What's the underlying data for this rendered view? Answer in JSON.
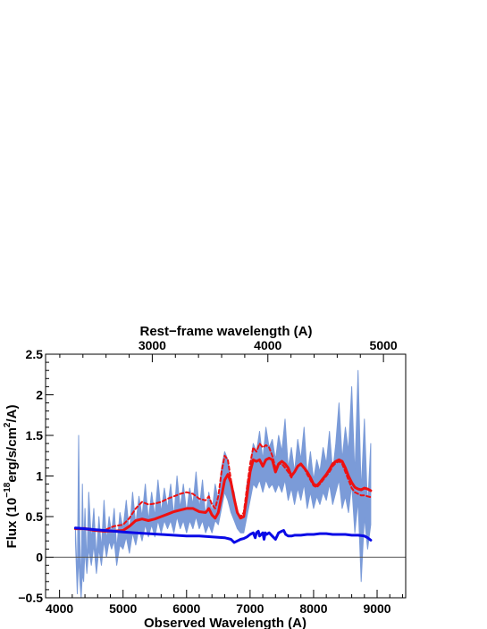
{
  "chart_data": {
    "type": "line",
    "title": "",
    "xlabel": "Observed Wavelength (A)",
    "ylabel_main": "Flux (10",
    "ylabel_exp": "−18",
    "ylabel_units": "erg/s/cm",
    "ylabel_exp2": "2",
    "ylabel_tail": "/A)",
    "top_xlabel": "Rest−frame wavelength (A)",
    "xlim": [
      3780,
      9450
    ],
    "ylim": [
      -0.5,
      2.5
    ],
    "x_ticks": [
      4000,
      5000,
      6000,
      7000,
      8000,
      9000
    ],
    "y_ticks": [
      -0.5,
      0,
      0.5,
      1,
      1.5,
      2,
      2.5
    ],
    "y_tick_labels": [
      "−0.5",
      "0",
      "0.5",
      "1",
      "1.5",
      "2",
      "2.5"
    ],
    "top_axis_ticks": [
      3000,
      4000,
      5000
    ],
    "redshift_factor": 1.82,
    "zero_line": 0,
    "series": [
      {
        "key": "observed_spectrum",
        "color": "#7b9bd8",
        "x": [
          4250,
          4280,
          4300,
          4320,
          4340,
          4360,
          4380,
          4400,
          4430,
          4460,
          4500,
          4540,
          4580,
          4620,
          4660,
          4700,
          4740,
          4780,
          4820,
          4860,
          4900,
          4950,
          5000,
          5050,
          5100,
          5150,
          5200,
          5250,
          5300,
          5350,
          5400,
          5450,
          5500,
          5550,
          5600,
          5650,
          5700,
          5750,
          5800,
          5850,
          5900,
          5950,
          6000,
          6050,
          6100,
          6150,
          6200,
          6250,
          6300,
          6350,
          6400,
          6450,
          6500,
          6550,
          6600,
          6650,
          6700,
          6750,
          6800,
          6850,
          6900,
          6950,
          7000,
          7050,
          7100,
          7150,
          7200,
          7250,
          7300,
          7350,
          7400,
          7450,
          7500,
          7550,
          7600,
          7650,
          7700,
          7750,
          7800,
          7850,
          7900,
          7950,
          8000,
          8050,
          8100,
          8150,
          8200,
          8250,
          8300,
          8350,
          8400,
          8450,
          8500,
          8550,
          8600,
          8650,
          8700,
          8750,
          8800,
          8850,
          8900
        ],
        "y": [
          0.35,
          -0.3,
          1.5,
          0.2,
          -0.4,
          0.9,
          0.1,
          0.6,
          -0.1,
          0.8,
          0.2,
          0.6,
          0.0,
          0.5,
          0.1,
          0.7,
          0.2,
          0.5,
          0.3,
          0.6,
          0.1,
          0.55,
          0.35,
          0.7,
          0.3,
          0.8,
          0.4,
          0.75,
          0.5,
          0.9,
          0.45,
          0.8,
          0.5,
          0.95,
          0.55,
          0.85,
          0.6,
          0.9,
          0.5,
          1.0,
          0.6,
          0.9,
          0.55,
          0.85,
          0.65,
          1.05,
          0.6,
          0.95,
          0.5,
          0.8,
          0.55,
          0.9,
          0.7,
          1.1,
          1.3,
          1.2,
          0.9,
          0.8,
          0.55,
          0.45,
          0.5,
          0.9,
          1.1,
          1.4,
          1.3,
          1.55,
          1.2,
          1.6,
          1.35,
          1.45,
          1.2,
          1.5,
          1.3,
          1.7,
          1.1,
          1.35,
          1.05,
          1.45,
          1.2,
          1.6,
          1.0,
          1.3,
          0.95,
          1.2,
          1.05,
          1.35,
          1.15,
          1.55,
          1.05,
          1.4,
          1.9,
          1.2,
          1.6,
          1.3,
          2.1,
          1.0,
          2.3,
          0.8,
          1.7,
          0.6,
          1.4
        ],
        "lower_y": [
          0.2,
          -0.45,
          0.0,
          -0.3,
          -0.5,
          -0.2,
          -0.3,
          0.1,
          -0.2,
          0.1,
          -0.1,
          0.15,
          -0.2,
          0.1,
          -0.1,
          0.2,
          0.0,
          0.2,
          0.1,
          0.2,
          -0.1,
          0.15,
          0.1,
          0.25,
          0.05,
          0.3,
          0.15,
          0.35,
          0.2,
          0.4,
          0.25,
          0.4,
          0.25,
          0.45,
          0.3,
          0.45,
          0.35,
          0.45,
          0.3,
          0.5,
          0.35,
          0.45,
          0.3,
          0.45,
          0.35,
          0.5,
          0.35,
          0.45,
          0.3,
          0.4,
          0.3,
          0.45,
          0.4,
          0.6,
          0.8,
          0.7,
          0.55,
          0.45,
          0.35,
          0.3,
          0.3,
          0.5,
          0.7,
          0.9,
          0.85,
          0.95,
          0.8,
          0.95,
          0.85,
          0.9,
          0.8,
          0.9,
          0.8,
          0.95,
          0.7,
          0.85,
          0.65,
          0.85,
          0.7,
          0.9,
          0.6,
          0.8,
          0.6,
          0.75,
          0.65,
          0.8,
          0.7,
          0.9,
          0.65,
          0.8,
          0.95,
          0.6,
          0.75,
          0.55,
          0.9,
          0.3,
          0.7,
          -0.3,
          0.5,
          0.1,
          0.4
        ],
        "width": 1
      },
      {
        "key": "model_solid",
        "color": "#ee1111",
        "dash": "none",
        "x": [
          4250,
          4400,
          4550,
          4700,
          4850,
          5000,
          5100,
          5200,
          5300,
          5400,
          5500,
          5600,
          5700,
          5800,
          5900,
          6000,
          6100,
          6200,
          6300,
          6350,
          6400,
          6450,
          6500,
          6550,
          6600,
          6650,
          6700,
          6750,
          6800,
          6850,
          6900,
          6950,
          7000,
          7050,
          7100,
          7150,
          7200,
          7250,
          7300,
          7350,
          7400,
          7450,
          7500,
          7550,
          7600,
          7650,
          7700,
          7750,
          7800,
          7850,
          7900,
          7950,
          8000,
          8050,
          8100,
          8150,
          8200,
          8250,
          8300,
          8350,
          8400,
          8450,
          8500,
          8550,
          8600,
          8650,
          8700,
          8750,
          8800,
          8850,
          8900
        ],
        "y": [
          0.35,
          0.35,
          0.33,
          0.32,
          0.32,
          0.33,
          0.38,
          0.45,
          0.47,
          0.45,
          0.47,
          0.5,
          0.53,
          0.56,
          0.58,
          0.6,
          0.6,
          0.56,
          0.55,
          0.6,
          0.52,
          0.48,
          0.55,
          0.75,
          0.95,
          1.02,
          0.92,
          0.72,
          0.55,
          0.48,
          0.5,
          0.75,
          1.05,
          1.2,
          1.18,
          1.2,
          1.12,
          1.2,
          1.22,
          1.2,
          1.05,
          1.15,
          1.18,
          1.15,
          1.1,
          1.0,
          1.05,
          1.12,
          1.15,
          1.1,
          1.05,
          0.98,
          0.9,
          0.88,
          0.92,
          0.97,
          1.02,
          1.08,
          1.15,
          1.18,
          1.2,
          1.18,
          1.1,
          1.0,
          0.92,
          0.86,
          0.84,
          0.83,
          0.85,
          0.84,
          0.82
        ],
        "width": 3
      },
      {
        "key": "model_dotted",
        "color": "#ee1111",
        "dash": "4,3",
        "x": [
          4250,
          4400,
          4550,
          4700,
          4850,
          5000,
          5100,
          5200,
          5300,
          5400,
          5500,
          5600,
          5700,
          5800,
          5900,
          6000,
          6100,
          6200,
          6300,
          6350,
          6400,
          6450,
          6500,
          6550,
          6600,
          6650,
          6700,
          6750,
          6800,
          6850,
          6900,
          6950,
          7000,
          7050,
          7100,
          7150,
          7200,
          7250,
          7300,
          7350,
          7400,
          7450,
          7500,
          7550,
          7600,
          7650,
          7700,
          7750,
          7800,
          7850,
          7900,
          7950,
          8000,
          8050,
          8100,
          8150,
          8200,
          8250,
          8300,
          8350,
          8400,
          8450,
          8500,
          8550,
          8600,
          8650,
          8700,
          8750,
          8800,
          8850,
          8900
        ],
        "y": [
          0.35,
          0.36,
          0.34,
          0.33,
          0.38,
          0.4,
          0.48,
          0.6,
          0.68,
          0.65,
          0.66,
          0.68,
          0.72,
          0.75,
          0.78,
          0.8,
          0.78,
          0.72,
          0.7,
          0.75,
          0.65,
          0.6,
          0.75,
          1.05,
          1.25,
          1.2,
          0.95,
          0.72,
          0.55,
          0.5,
          0.55,
          0.85,
          1.15,
          1.35,
          1.3,
          1.4,
          1.35,
          1.38,
          1.35,
          1.25,
          1.1,
          1.15,
          1.15,
          1.1,
          1.05,
          0.98,
          1.05,
          1.12,
          1.15,
          1.1,
          1.02,
          0.95,
          0.88,
          0.86,
          0.9,
          0.95,
          1.0,
          1.05,
          1.12,
          1.16,
          1.18,
          1.15,
          1.05,
          0.95,
          0.85,
          0.8,
          0.78,
          0.76,
          0.76,
          0.75,
          0.74
        ],
        "width": 2
      },
      {
        "key": "error_spectrum",
        "color": "#0a0ae6",
        "dash": "none",
        "x": [
          4250,
          4400,
          4550,
          4700,
          4850,
          5000,
          5200,
          5400,
          5600,
          5800,
          6000,
          6200,
          6400,
          6600,
          6700,
          6750,
          6800,
          6850,
          6900,
          6950,
          7000,
          7050,
          7080,
          7100,
          7130,
          7150,
          7200,
          7220,
          7240,
          7260,
          7300,
          7350,
          7400,
          7450,
          7500,
          7530,
          7560,
          7600,
          7650,
          7700,
          7800,
          7900,
          8000,
          8100,
          8200,
          8300,
          8400,
          8500,
          8600,
          8700,
          8800,
          8850,
          8900
        ],
        "y": [
          0.36,
          0.35,
          0.34,
          0.33,
          0.32,
          0.31,
          0.3,
          0.29,
          0.28,
          0.27,
          0.26,
          0.26,
          0.25,
          0.24,
          0.22,
          0.18,
          0.2,
          0.22,
          0.23,
          0.25,
          0.28,
          0.3,
          0.24,
          0.3,
          0.32,
          0.26,
          0.3,
          0.22,
          0.3,
          0.28,
          0.3,
          0.26,
          0.22,
          0.3,
          0.32,
          0.33,
          0.28,
          0.26,
          0.26,
          0.27,
          0.27,
          0.28,
          0.28,
          0.29,
          0.29,
          0.28,
          0.28,
          0.28,
          0.27,
          0.27,
          0.26,
          0.24,
          0.21
        ],
        "width": 3
      }
    ]
  }
}
